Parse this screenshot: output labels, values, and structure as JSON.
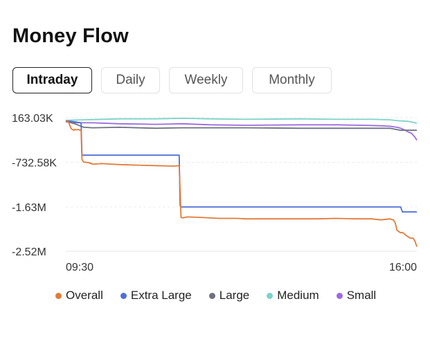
{
  "header": {
    "title": "Money Flow"
  },
  "tabs": [
    {
      "label": "Intraday",
      "active": true
    },
    {
      "label": "Daily",
      "active": false
    },
    {
      "label": "Weekly",
      "active": false
    },
    {
      "label": "Monthly",
      "active": false
    }
  ],
  "chart_data": {
    "type": "line",
    "y_tick_labels": [
      "163.03K",
      "-732.58K",
      "-1.63M",
      "-2.52M"
    ],
    "y_ticks": [
      163030,
      -732580,
      -1630000,
      -2520000
    ],
    "ylim": [
      -2520000,
      163030
    ],
    "x_tick_labels": [
      "09:30",
      "16:00"
    ],
    "xlim": [
      0,
      390
    ],
    "grid": true,
    "legend_position": "bottom",
    "series": [
      {
        "name": "Overall",
        "color": "#e07b39",
        "x": [
          0,
          3,
          6,
          9,
          10,
          11,
          14,
          15,
          17,
          18,
          20,
          26,
          27,
          28,
          29,
          30,
          40,
          60,
          80,
          100,
          120,
          126,
          127,
          128,
          130,
          135,
          150,
          170,
          190,
          200,
          220,
          240,
          260,
          280,
          300,
          320,
          340,
          350,
          360,
          364,
          366,
          368,
          372,
          374,
          378,
          382,
          386,
          388,
          390
        ],
        "y": [
          100000,
          80000,
          -60000,
          -90000,
          -70000,
          -80000,
          -75000,
          -85000,
          -90000,
          -680000,
          -730000,
          -740000,
          -760000,
          -750000,
          -765000,
          -770000,
          -760000,
          -780000,
          -790000,
          -800000,
          -810000,
          -800000,
          -1300000,
          -1840000,
          -1850000,
          -1830000,
          -1840000,
          -1860000,
          -1860000,
          -1870000,
          -1870000,
          -1870000,
          -1870000,
          -1870000,
          -1860000,
          -1870000,
          -1870000,
          -1890000,
          -1870000,
          -1890000,
          -1950000,
          -2100000,
          -2150000,
          -2140000,
          -2200000,
          -2250000,
          -2260000,
          -2320000,
          -2430000
        ]
      },
      {
        "name": "Extra Large",
        "color": "#4f6fd8",
        "x": [
          0,
          10,
          17,
          18,
          126,
          127,
          128,
          372,
          374,
          390
        ],
        "y": [
          100000,
          80000,
          60000,
          -590000,
          -590000,
          -1600000,
          -1630000,
          -1630000,
          -1730000,
          -1730000
        ]
      },
      {
        "name": "Large",
        "color": "#6b7180",
        "x": [
          0,
          10,
          20,
          30,
          60,
          100,
          130,
          200,
          260,
          300,
          350,
          360,
          372,
          380,
          390
        ],
        "y": [
          90000,
          40000,
          -30000,
          -40000,
          -30000,
          -50000,
          -40000,
          -40000,
          -50000,
          -50000,
          -50000,
          -50000,
          -90000,
          -90000,
          -90000
        ]
      },
      {
        "name": "Medium",
        "color": "#7bd3c8",
        "x": [
          0,
          20,
          60,
          100,
          130,
          160,
          200,
          260,
          300,
          340,
          360,
          370,
          380,
          386,
          390
        ],
        "y": [
          110000,
          120000,
          140000,
          140000,
          150000,
          140000,
          130000,
          140000,
          130000,
          130000,
          120000,
          100000,
          90000,
          70000,
          50000
        ]
      },
      {
        "name": "Small",
        "color": "#9c6ae0",
        "x": [
          0,
          10,
          30,
          60,
          100,
          130,
          160,
          200,
          260,
          300,
          330,
          350,
          360,
          368,
          372,
          376,
          380,
          384,
          388,
          390
        ],
        "y": [
          80000,
          60000,
          60000,
          40000,
          30000,
          40000,
          20000,
          10000,
          20000,
          20000,
          10000,
          0,
          -10000,
          -30000,
          -50000,
          -80000,
          -120000,
          -150000,
          -230000,
          -290000
        ]
      }
    ]
  }
}
